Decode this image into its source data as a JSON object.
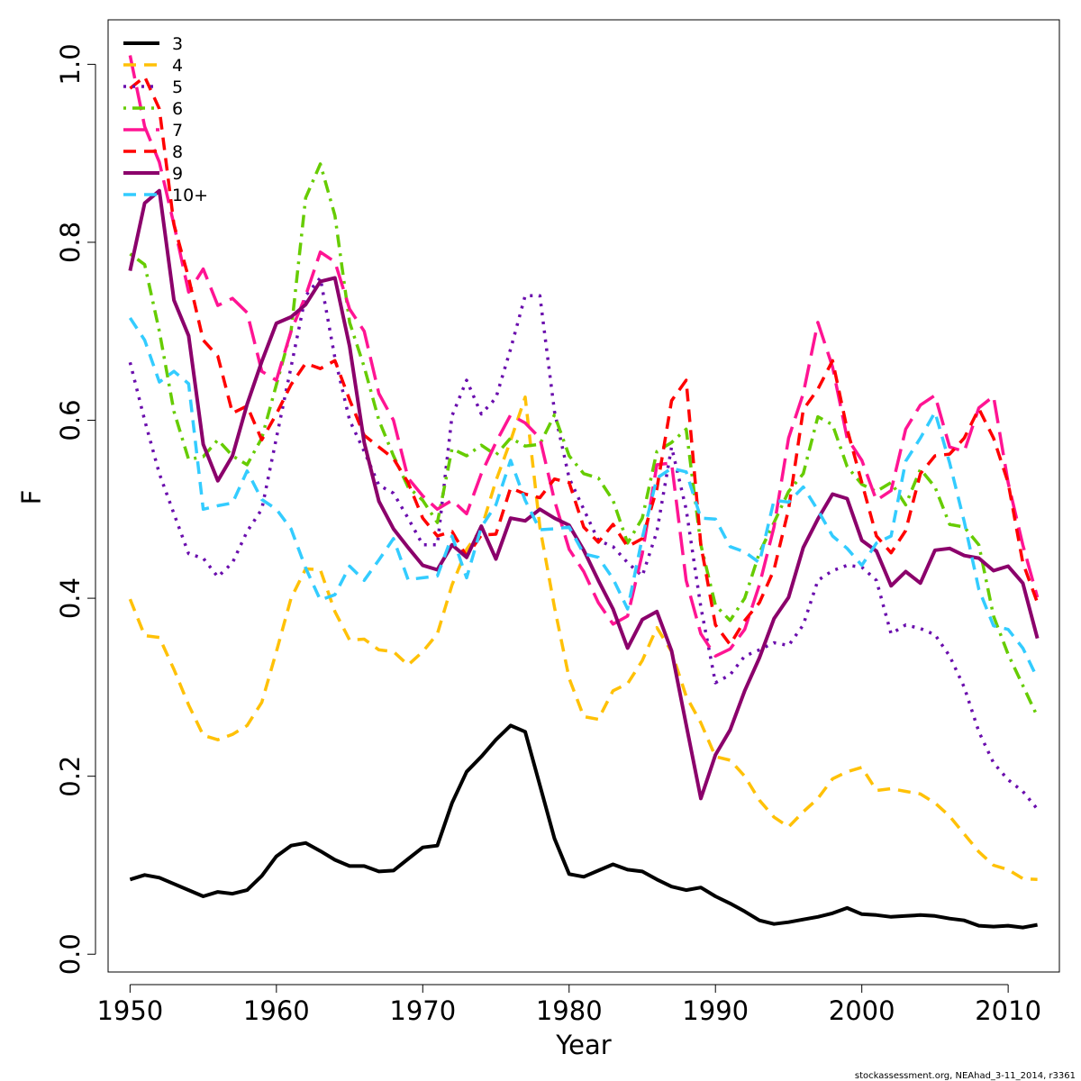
{
  "chart_data": {
    "type": "line",
    "xlabel": "Year",
    "ylabel": "F",
    "xlim": [
      1948.5,
      2013.5
    ],
    "ylim": [
      -0.02,
      1.05
    ],
    "xticks": [
      1950,
      1960,
      1970,
      1980,
      1990,
      2000,
      2010
    ],
    "yticks": [
      0.0,
      0.2,
      0.4,
      0.6,
      0.8,
      1.0
    ],
    "ytick_labels": [
      "0.0",
      "0.2",
      "0.4",
      "0.6",
      "0.8",
      "1.0"
    ],
    "grid": false,
    "legend_position": "top-left",
    "x": [
      1950,
      1951,
      1952,
      1953,
      1954,
      1955,
      1956,
      1957,
      1958,
      1959,
      1960,
      1961,
      1962,
      1963,
      1964,
      1965,
      1966,
      1967,
      1968,
      1969,
      1970,
      1971,
      1972,
      1973,
      1974,
      1975,
      1976,
      1977,
      1978,
      1979,
      1980,
      1981,
      1982,
      1983,
      1984,
      1985,
      1986,
      1987,
      1988,
      1989,
      1990,
      1991,
      1992,
      1993,
      1994,
      1995,
      1996,
      1997,
      1998,
      1999,
      2000,
      2001,
      2002,
      2003,
      2004,
      2005,
      2006,
      2007,
      2008,
      2009,
      2010,
      2011,
      2012
    ],
    "series": [
      {
        "name": "3",
        "color": "#000000",
        "dash": "solid",
        "width": 4,
        "values": [
          0.084,
          0.089,
          0.086,
          0.079,
          0.072,
          0.065,
          0.07,
          0.068,
          0.072,
          0.088,
          0.11,
          0.122,
          0.125,
          0.116,
          0.106,
          0.099,
          0.099,
          0.093,
          0.094,
          0.107,
          0.12,
          0.122,
          0.17,
          0.205,
          0.222,
          0.241,
          0.257,
          0.25,
          0.19,
          0.13,
          0.09,
          0.087,
          0.094,
          0.101,
          0.095,
          0.093,
          0.084,
          0.076,
          0.072,
          0.075,
          0.065,
          0.057,
          0.048,
          0.038,
          0.034,
          0.036,
          0.039,
          0.042,
          0.046,
          0.052,
          0.045,
          0.044,
          0.042,
          0.043,
          0.044,
          0.043,
          0.04,
          0.038,
          0.032,
          0.031,
          0.032,
          0.03,
          0.033
        ]
      },
      {
        "name": "4",
        "color": "#FFC107",
        "dash": "dashed",
        "width": 3.5,
        "values": [
          0.399,
          0.358,
          0.356,
          0.32,
          0.28,
          0.246,
          0.241,
          0.247,
          0.257,
          0.283,
          0.34,
          0.4,
          0.433,
          0.432,
          0.385,
          0.353,
          0.354,
          0.342,
          0.34,
          0.325,
          0.34,
          0.36,
          0.415,
          0.455,
          0.478,
          0.532,
          0.577,
          0.626,
          0.48,
          0.39,
          0.31,
          0.267,
          0.264,
          0.296,
          0.304,
          0.33,
          0.367,
          0.34,
          0.29,
          0.26,
          0.222,
          0.218,
          0.2,
          0.173,
          0.154,
          0.143,
          0.16,
          0.175,
          0.197,
          0.205,
          0.21,
          0.184,
          0.186,
          0.183,
          0.18,
          0.17,
          0.155,
          0.135,
          0.115,
          0.1,
          0.095,
          0.085,
          0.084
        ]
      },
      {
        "name": "5",
        "color": "#6A0DAD",
        "dash": "dotted",
        "width": 3.5,
        "values": [
          0.665,
          0.6,
          0.54,
          0.495,
          0.45,
          0.445,
          0.424,
          0.44,
          0.475,
          0.5,
          0.58,
          0.66,
          0.74,
          0.76,
          0.67,
          0.6,
          0.565,
          0.527,
          0.518,
          0.49,
          0.46,
          0.46,
          0.605,
          0.645,
          0.607,
          0.625,
          0.68,
          0.74,
          0.74,
          0.61,
          0.535,
          0.5,
          0.465,
          0.458,
          0.44,
          0.425,
          0.475,
          0.57,
          0.5,
          0.39,
          0.305,
          0.314,
          0.335,
          0.342,
          0.35,
          0.347,
          0.37,
          0.42,
          0.431,
          0.437,
          0.435,
          0.42,
          0.36,
          0.37,
          0.366,
          0.359,
          0.335,
          0.3,
          0.25,
          0.215,
          0.196,
          0.183,
          0.163
        ]
      },
      {
        "name": "6",
        "color": "#66CC00",
        "dash": "dashdot",
        "width": 3.5,
        "values": [
          0.787,
          0.775,
          0.7,
          0.61,
          0.556,
          0.559,
          0.578,
          0.56,
          0.55,
          0.58,
          0.64,
          0.7,
          0.85,
          0.888,
          0.83,
          0.71,
          0.66,
          0.6,
          0.56,
          0.525,
          0.51,
          0.485,
          0.568,
          0.56,
          0.572,
          0.561,
          0.58,
          0.571,
          0.573,
          0.606,
          0.56,
          0.54,
          0.535,
          0.51,
          0.462,
          0.49,
          0.565,
          0.575,
          0.59,
          0.46,
          0.392,
          0.375,
          0.4,
          0.451,
          0.485,
          0.52,
          0.54,
          0.604,
          0.595,
          0.548,
          0.528,
          0.52,
          0.53,
          0.505,
          0.545,
          0.525,
          0.483,
          0.48,
          0.46,
          0.38,
          0.337,
          0.302,
          0.267
        ]
      },
      {
        "name": "7",
        "color": "#FF1493",
        "dash": "longdash",
        "width": 3.5,
        "values": [
          1.01,
          0.93,
          0.89,
          0.82,
          0.744,
          0.77,
          0.729,
          0.737,
          0.721,
          0.655,
          0.645,
          0.7,
          0.74,
          0.789,
          0.778,
          0.725,
          0.7,
          0.63,
          0.6,
          0.535,
          0.515,
          0.5,
          0.51,
          0.495,
          0.54,
          0.575,
          0.606,
          0.597,
          0.58,
          0.51,
          0.455,
          0.43,
          0.395,
          0.371,
          0.38,
          0.45,
          0.55,
          0.552,
          0.42,
          0.36,
          0.335,
          0.343,
          0.365,
          0.415,
          0.48,
          0.58,
          0.63,
          0.71,
          0.66,
          0.58,
          0.555,
          0.51,
          0.521,
          0.59,
          0.617,
          0.628,
          0.57,
          0.565,
          0.614,
          0.627,
          0.53,
          0.46,
          0.401
        ]
      },
      {
        "name": "8",
        "color": "#FF0000",
        "dash": "dashed",
        "width": 3.5,
        "values": [
          0.973,
          0.986,
          0.95,
          0.82,
          0.76,
          0.69,
          0.672,
          0.608,
          0.616,
          0.578,
          0.607,
          0.64,
          0.664,
          0.658,
          0.667,
          0.623,
          0.583,
          0.57,
          0.557,
          0.53,
          0.49,
          0.47,
          0.475,
          0.447,
          0.471,
          0.472,
          0.524,
          0.517,
          0.513,
          0.534,
          0.53,
          0.48,
          0.463,
          0.483,
          0.458,
          0.467,
          0.523,
          0.622,
          0.645,
          0.46,
          0.37,
          0.348,
          0.375,
          0.395,
          0.432,
          0.5,
          0.612,
          0.635,
          0.667,
          0.59,
          0.53,
          0.47,
          0.451,
          0.476,
          0.54,
          0.56,
          0.562,
          0.58,
          0.613,
          0.58,
          0.53,
          0.44,
          0.395
        ]
      },
      {
        "name": "9",
        "color": "#8B006B",
        "dash": "solid",
        "width": 4,
        "values": [
          0.768,
          0.844,
          0.858,
          0.735,
          0.695,
          0.573,
          0.532,
          0.56,
          0.618,
          0.666,
          0.709,
          0.716,
          0.73,
          0.756,
          0.76,
          0.683,
          0.575,
          0.509,
          0.478,
          0.457,
          0.437,
          0.432,
          0.46,
          0.446,
          0.481,
          0.444,
          0.49,
          0.487,
          0.5,
          0.49,
          0.482,
          0.454,
          0.42,
          0.388,
          0.344,
          0.376,
          0.385,
          0.341,
          0.258,
          0.175,
          0.224,
          0.252,
          0.296,
          0.333,
          0.377,
          0.401,
          0.457,
          0.489,
          0.517,
          0.512,
          0.465,
          0.453,
          0.414,
          0.43,
          0.417,
          0.454,
          0.456,
          0.448,
          0.445,
          0.431,
          0.436,
          0.417,
          0.355
        ]
      },
      {
        "name": "10+",
        "color": "#33CCFF",
        "dash": "dashed",
        "width": 3.5,
        "values": [
          0.715,
          0.69,
          0.643,
          0.655,
          0.641,
          0.5,
          0.504,
          0.507,
          0.543,
          0.511,
          0.5,
          0.478,
          0.434,
          0.398,
          0.404,
          0.436,
          0.42,
          0.443,
          0.467,
          0.421,
          0.423,
          0.425,
          0.47,
          0.423,
          0.48,
          0.505,
          0.555,
          0.51,
          0.477,
          0.478,
          0.48,
          0.45,
          0.446,
          0.422,
          0.388,
          0.468,
          0.535,
          0.546,
          0.542,
          0.49,
          0.489,
          0.458,
          0.452,
          0.44,
          0.51,
          0.508,
          0.525,
          0.499,
          0.47,
          0.456,
          0.437,
          0.462,
          0.47,
          0.554,
          0.58,
          0.609,
          0.552,
          0.486,
          0.41,
          0.369,
          0.365,
          0.344,
          0.31
        ]
      }
    ]
  },
  "footer": "stockassessment.org, NEAhad_3-11_2014, r3361"
}
